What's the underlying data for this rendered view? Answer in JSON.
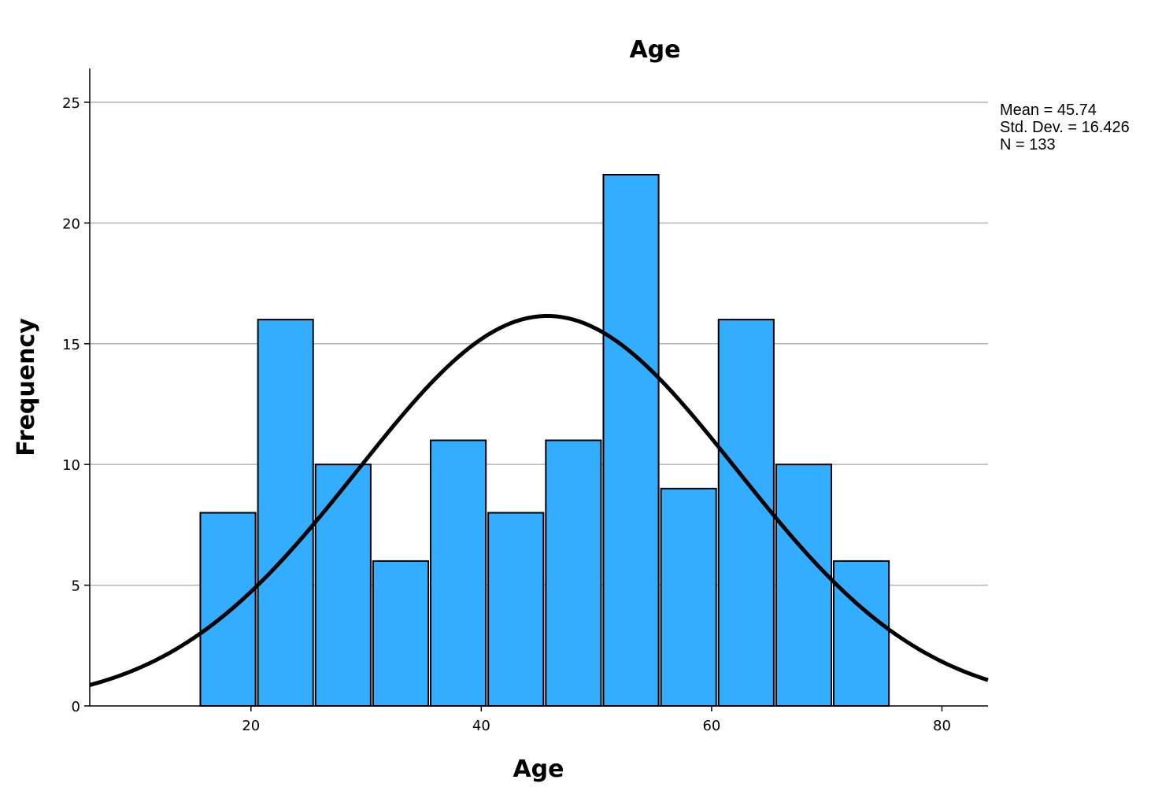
{
  "chart_data": {
    "type": "bar",
    "title": "Age",
    "xlabel": "Age",
    "ylabel": "Frequency",
    "xlim": [
      6,
      84
    ],
    "ylim": [
      0,
      26.4
    ],
    "x_ticks": [
      20,
      40,
      60,
      80
    ],
    "y_ticks": [
      0,
      5,
      10,
      15,
      20,
      25
    ],
    "grid": "horizontal",
    "bar_color": "#33adff",
    "bins": [
      {
        "start": 15.5,
        "end": 20.5,
        "value": 8
      },
      {
        "start": 20.5,
        "end": 25.5,
        "value": 16
      },
      {
        "start": 25.5,
        "end": 30.5,
        "value": 10
      },
      {
        "start": 30.5,
        "end": 35.5,
        "value": 6
      },
      {
        "start": 35.5,
        "end": 40.5,
        "value": 11
      },
      {
        "start": 40.5,
        "end": 45.5,
        "value": 8
      },
      {
        "start": 45.5,
        "end": 50.5,
        "value": 11
      },
      {
        "start": 50.5,
        "end": 55.5,
        "value": 22
      },
      {
        "start": 55.5,
        "end": 60.5,
        "value": 9
      },
      {
        "start": 60.5,
        "end": 65.5,
        "value": 16
      },
      {
        "start": 65.5,
        "end": 70.5,
        "value": 10
      },
      {
        "start": 70.5,
        "end": 75.5,
        "value": 6
      }
    ],
    "normal_curve": {
      "mean": 45.74,
      "std_dev": 16.426,
      "n": 133,
      "bin_width": 5
    },
    "stats_lines": [
      "Mean = 45.74",
      "Std. Dev. = 16.426",
      "N = 133"
    ]
  }
}
